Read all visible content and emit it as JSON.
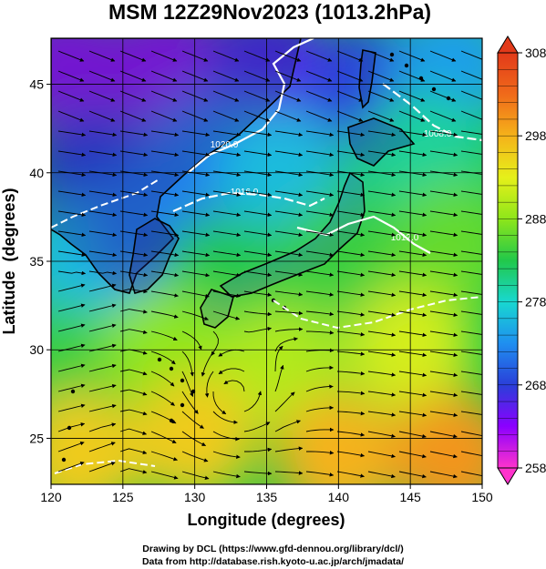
{
  "chart_data": {
    "type": "heatmap",
    "title": "MSM 12Z29Nov2023 (1013.2hPa)",
    "xlabel": "Longitude (degrees)",
    "ylabel": "Latitude  (degrees)",
    "xlim": [
      120,
      150
    ],
    "ylim": [
      22.4,
      47.6
    ],
    "xticks": [
      "120",
      "125",
      "130",
      "135",
      "140",
      "145",
      "150"
    ],
    "yticks": [
      "25",
      "30",
      "35",
      "40",
      "45"
    ],
    "grid": true,
    "colorbar": {
      "range": [
        258,
        308
      ],
      "ticks": [
        "308",
        "298",
        "288",
        "278",
        "268",
        "258"
      ],
      "tick_values": [
        308,
        298,
        288,
        278,
        268,
        258
      ],
      "extend": "both",
      "colors": [
        "#ff33cc",
        "#8b00ff",
        "#2a3fd9",
        "#1f8ff0",
        "#18d8d0",
        "#22c84a",
        "#8ee61a",
        "#e6f01a",
        "#f5b21a",
        "#f06a1a",
        "#e23a1a"
      ]
    },
    "temperature_field": [
      {
        "lon": 121,
        "lat": 46,
        "value": 262
      },
      {
        "lon": 128,
        "lat": 46,
        "value": 262
      },
      {
        "lon": 135,
        "lat": 46,
        "value": 266
      },
      {
        "lon": 142,
        "lat": 45,
        "value": 268
      },
      {
        "lon": 148,
        "lat": 46,
        "value": 274
      },
      {
        "lon": 123,
        "lat": 40,
        "value": 268
      },
      {
        "lon": 131,
        "lat": 41,
        "value": 272
      },
      {
        "lon": 136,
        "lat": 40,
        "value": 276
      },
      {
        "lon": 146,
        "lat": 41,
        "value": 280
      },
      {
        "lon": 122,
        "lat": 35,
        "value": 276
      },
      {
        "lon": 127,
        "lat": 37,
        "value": 272
      },
      {
        "lon": 132,
        "lat": 34,
        "value": 283
      },
      {
        "lon": 140,
        "lat": 35,
        "value": 284
      },
      {
        "lon": 148,
        "lat": 36,
        "value": 286
      },
      {
        "lon": 121,
        "lat": 29,
        "value": 284
      },
      {
        "lon": 128,
        "lat": 30,
        "value": 288
      },
      {
        "lon": 136,
        "lat": 29,
        "value": 290
      },
      {
        "lon": 145,
        "lat": 30,
        "value": 292
      },
      {
        "lon": 122,
        "lat": 24,
        "value": 296
      },
      {
        "lon": 130,
        "lat": 25,
        "value": 296
      },
      {
        "lon": 140,
        "lat": 24,
        "value": 298
      },
      {
        "lon": 148,
        "lat": 24,
        "value": 300
      }
    ],
    "isobars": [
      {
        "label": "1020.0",
        "value": 1020.0
      },
      {
        "label": "1016.0",
        "value": 1016.0
      },
      {
        "label": "1012.0",
        "value": 1012.0
      },
      {
        "label": "1008.0",
        "value": 1008.0
      }
    ]
  },
  "credits": {
    "line1": "Drawing by DCL (https://www.gfd-dennou.org/library/dcl/)",
    "line2": "Data from http://database.rish.kyoto-u.ac.jp/arch/jmadata/"
  },
  "colors": {
    "isobar": "#ffffff",
    "coast": "#000000",
    "streamline": "#000000"
  }
}
